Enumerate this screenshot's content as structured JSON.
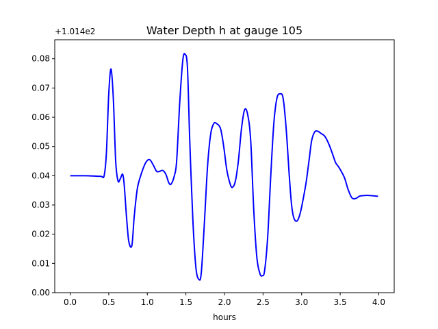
{
  "chart_data": {
    "type": "line",
    "title": "Water Depth h at gauge 105",
    "xlabel": "hours",
    "ylabel": "",
    "y_offset_label": "+1.014e2",
    "xlim": [
      -0.2,
      4.2
    ],
    "ylim": [
      0.0,
      0.0865
    ],
    "xticks": [
      "0.0",
      "0.5",
      "1.0",
      "1.5",
      "2.0",
      "2.5",
      "3.0",
      "3.5",
      "4.0"
    ],
    "yticks": [
      "0.00",
      "0.01",
      "0.02",
      "0.03",
      "0.04",
      "0.05",
      "0.06",
      "0.07",
      "0.08"
    ],
    "grid": false,
    "line_color": "#0000ff",
    "series": [
      {
        "x": [
          0.0,
          0.1,
          0.2,
          0.3,
          0.4,
          0.44,
          0.47,
          0.5,
          0.53,
          0.56,
          0.59,
          0.62,
          0.65,
          0.68,
          0.7,
          0.73,
          0.76,
          0.8,
          0.83,
          0.87,
          0.92,
          0.98,
          1.03,
          1.08,
          1.12,
          1.16,
          1.2,
          1.24,
          1.28,
          1.31,
          1.35,
          1.38,
          1.42,
          1.46,
          1.49,
          1.52,
          1.55,
          1.59,
          1.63,
          1.67,
          1.7,
          1.74,
          1.78,
          1.82,
          1.86,
          1.9,
          1.95,
          1.99,
          2.03,
          2.07,
          2.1,
          2.14,
          2.18,
          2.22,
          2.26,
          2.3,
          2.34,
          2.38,
          2.42,
          2.46,
          2.49,
          2.52,
          2.56,
          2.6,
          2.64,
          2.68,
          2.72,
          2.76,
          2.8,
          2.84,
          2.87,
          2.9,
          2.94,
          2.98,
          3.02,
          3.06,
          3.1,
          3.13,
          3.17,
          3.21,
          3.25,
          3.3,
          3.35,
          3.4,
          3.44,
          3.48,
          3.52,
          3.56,
          3.6,
          3.65,
          3.7,
          3.75,
          3.8,
          3.85,
          3.9,
          3.94,
          3.97,
          3.99
        ],
        "y": [
          0.04,
          0.04,
          0.04,
          0.0399,
          0.0398,
          0.04,
          0.048,
          0.068,
          0.0765,
          0.066,
          0.045,
          0.0382,
          0.039,
          0.0405,
          0.037,
          0.026,
          0.0175,
          0.0162,
          0.026,
          0.0355,
          0.0405,
          0.0445,
          0.0455,
          0.0435,
          0.0415,
          0.0415,
          0.0418,
          0.0405,
          0.0375,
          0.0372,
          0.04,
          0.045,
          0.065,
          0.0795,
          0.0815,
          0.077,
          0.052,
          0.025,
          0.0085,
          0.0045,
          0.007,
          0.024,
          0.043,
          0.054,
          0.0578,
          0.0578,
          0.056,
          0.05,
          0.042,
          0.0375,
          0.036,
          0.038,
          0.045,
          0.056,
          0.0625,
          0.061,
          0.052,
          0.028,
          0.012,
          0.0065,
          0.0058,
          0.0075,
          0.019,
          0.04,
          0.058,
          0.0665,
          0.068,
          0.0665,
          0.056,
          0.04,
          0.03,
          0.0255,
          0.0245,
          0.027,
          0.032,
          0.038,
          0.046,
          0.052,
          0.055,
          0.0552,
          0.0545,
          0.0535,
          0.051,
          0.0475,
          0.0445,
          0.043,
          0.0412,
          0.039,
          0.0355,
          0.0325,
          0.0322,
          0.033,
          0.0332,
          0.0333,
          0.0332,
          0.0331,
          0.033,
          0.033
        ]
      }
    ]
  }
}
